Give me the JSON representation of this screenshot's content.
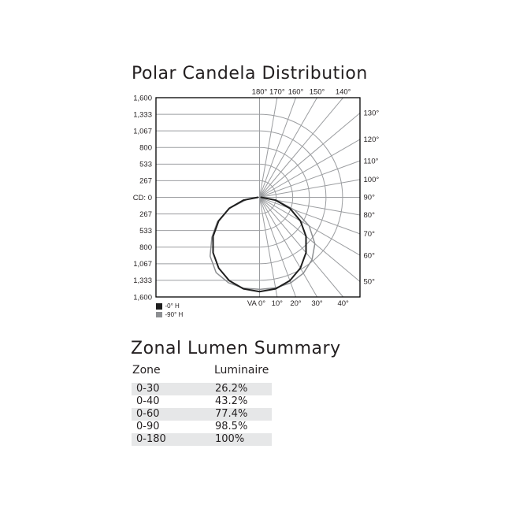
{
  "polar_section": {
    "title": "Polar Candela Distribution"
  },
  "chart_data": {
    "type": "polar",
    "title": "Polar Candela Distribution",
    "grid_color": "#9b9da0",
    "border_color": "#000000",
    "text_color": "#231f20",
    "cd_axis": {
      "max": 1600,
      "step_cd": 267,
      "tick_labels": [
        "1,600",
        "1,333",
        "1,067",
        "800",
        "533",
        "267",
        "CD: 0",
        "267",
        "533",
        "800",
        "1,067",
        "1,333",
        "1,600"
      ]
    },
    "arc_radii_cd": [
      267,
      533,
      800,
      1067,
      1333
    ],
    "spoke_step_deg": 10,
    "angle_ticks": {
      "top": {
        "labels": [
          "180°",
          "170°",
          "160°",
          "150°",
          "140°"
        ],
        "values": [
          180,
          170,
          160,
          150,
          140
        ]
      },
      "right": {
        "labels": [
          "130°",
          "120°",
          "110°",
          "100°",
          "90°",
          "80°",
          "70°",
          "60°",
          "50°"
        ],
        "values": [
          130,
          120,
          110,
          100,
          90,
          80,
          70,
          60,
          50
        ]
      },
      "bottom": {
        "labels": [
          "VA 0°",
          "10°",
          "20°",
          "30°",
          "40°"
        ],
        "values": [
          0,
          10,
          20,
          30,
          40
        ]
      }
    },
    "series": [
      {
        "name": "-90° H",
        "color": "#8d8f92",
        "width": 1.5,
        "points_left": [
          [
            0,
            1476
          ],
          [
            10,
            1481
          ],
          [
            20,
            1460
          ],
          [
            30,
            1395
          ],
          [
            40,
            1235
          ],
          [
            50,
            1000
          ],
          [
            60,
            780
          ],
          [
            70,
            512
          ],
          [
            80,
            215
          ],
          [
            90,
            30
          ]
        ],
        "points_right": [
          [
            0,
            1478
          ],
          [
            10,
            1476
          ],
          [
            20,
            1462
          ],
          [
            30,
            1408
          ],
          [
            40,
            1310
          ],
          [
            50,
            1160
          ],
          [
            60,
            920
          ],
          [
            70,
            600
          ],
          [
            80,
            280
          ],
          [
            90,
            30
          ]
        ]
      },
      {
        "name": "-0° H",
        "color": "#1e1e1e",
        "width": 2,
        "points_left": [
          [
            0,
            1515
          ],
          [
            10,
            1492
          ],
          [
            20,
            1424
          ],
          [
            30,
            1312
          ],
          [
            40,
            1161
          ],
          [
            50,
            974
          ],
          [
            60,
            758
          ],
          [
            70,
            518
          ],
          [
            80,
            263
          ],
          [
            90,
            25
          ]
        ],
        "points_right": [
          [
            0,
            1515
          ],
          [
            10,
            1492
          ],
          [
            20,
            1424
          ],
          [
            30,
            1312
          ],
          [
            40,
            1161
          ],
          [
            50,
            974
          ],
          [
            60,
            758
          ],
          [
            70,
            518
          ],
          [
            80,
            263
          ],
          [
            90,
            25
          ]
        ]
      }
    ]
  },
  "legend": {
    "items": [
      {
        "label": "-0° H",
        "color": "#1e1e1e"
      },
      {
        "label": "-90° H",
        "color": "#8d8f92"
      }
    ]
  },
  "zonal_section": {
    "title": "Zonal Lumen Summary",
    "table": {
      "headers": [
        "Zone",
        "Luminaire"
      ],
      "stripe_color": "#e6e7e8",
      "rows": [
        [
          "0-30",
          "26.2%"
        ],
        [
          "0-40",
          "43.2%"
        ],
        [
          "0-60",
          "77.4%"
        ],
        [
          "0-90",
          "98.5%"
        ],
        [
          "0-180",
          "100%"
        ]
      ]
    }
  }
}
